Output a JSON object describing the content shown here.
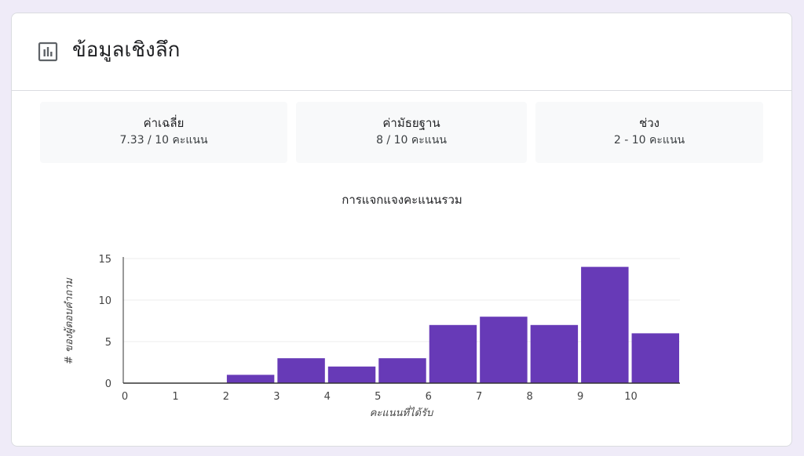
{
  "header": {
    "title": "ข้อมูลเชิงลึก",
    "icon": "bar-chart-icon"
  },
  "stats": [
    {
      "label": "ค่าเฉลี่ย",
      "value": "7.33 / 10 คะแนน"
    },
    {
      "label": "ค่ามัธยฐาน",
      "value": "8 / 10 คะแนน"
    },
    {
      "label": "ช่วง",
      "value": "2 - 10 คะแนน"
    }
  ],
  "colors": {
    "bar": "#673ab7",
    "grid": "#eeeeee",
    "axis": "#333333",
    "background": "#efebf8"
  },
  "chart_data": {
    "type": "bar",
    "title": "การแจกแจงคะแนนรวม",
    "xlabel": "คะแนนที่ได้รับ",
    "ylabel": "# ของผู้ตอบคำถาม",
    "categories": [
      "0",
      "1",
      "2",
      "3",
      "4",
      "5",
      "6",
      "7",
      "8",
      "9",
      "10"
    ],
    "values": [
      0,
      0,
      1,
      3,
      2,
      3,
      7,
      8,
      7,
      14,
      6
    ],
    "ylim": [
      0,
      15
    ],
    "yticks": [
      0,
      5,
      10,
      15
    ],
    "grid": true,
    "legend": "none"
  }
}
